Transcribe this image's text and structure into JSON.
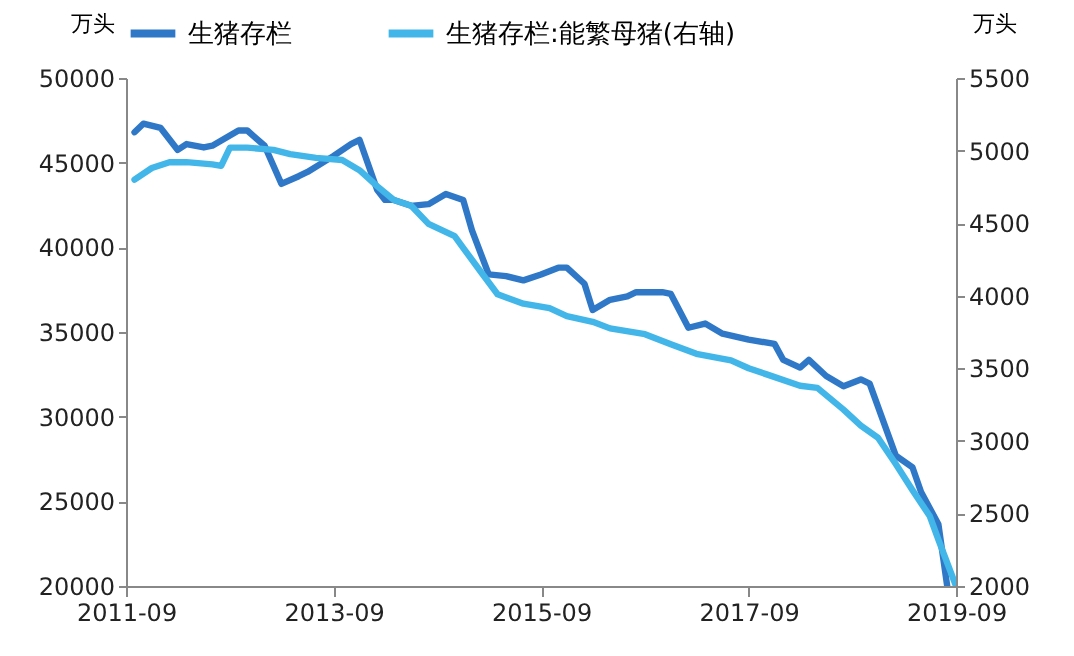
{
  "chart_data": {
    "type": "line",
    "ylabel": "万头",
    "y2label": "万头",
    "xlim": [
      "2011-09",
      "2019-09"
    ],
    "xticks": [
      "2011-09",
      "2013-09",
      "2015-09",
      "2017-09",
      "2019-09"
    ],
    "ylim": [
      20000,
      50000
    ],
    "yticks": [
      20000,
      25000,
      30000,
      35000,
      40000,
      45000,
      50000
    ],
    "y2lim": [
      2000,
      5500
    ],
    "y2ticks": [
      2000,
      2500,
      3000,
      3500,
      4000,
      4500,
      5000,
      5500
    ],
    "grid": false,
    "legend": "top",
    "line_style": "solid",
    "marker": "none",
    "series": [
      {
        "name": "生猪存栏",
        "color": "#2f78c8",
        "x": [
          "2011-10",
          "2011-11",
          "2012-01",
          "2012-03",
          "2012-04",
          "2012-06",
          "2012-07",
          "2012-10",
          "2012-11",
          "2013-01",
          "2013-03",
          "2013-05",
          "2013-06",
          "2013-09",
          "2013-11",
          "2013-12",
          "2014-02",
          "2014-03",
          "2014-04",
          "2014-06",
          "2014-08",
          "2014-10",
          "2014-12",
          "2015-01",
          "2015-03",
          "2015-05",
          "2015-07",
          "2015-09",
          "2015-11",
          "2015-12",
          "2016-02",
          "2016-03",
          "2016-05",
          "2016-07",
          "2016-08",
          "2016-11",
          "2016-12",
          "2017-02",
          "2017-04",
          "2017-06",
          "2017-09",
          "2017-12",
          "2018-01",
          "2018-03",
          "2018-04",
          "2018-06",
          "2018-08",
          "2018-10",
          "2018-11",
          "2019-02",
          "2019-04",
          "2019-05",
          "2019-07",
          "2019-08"
        ],
        "values": [
          46800,
          47300,
          47050,
          45750,
          46100,
          45900,
          46000,
          46900,
          46900,
          46000,
          43750,
          44200,
          44450,
          45400,
          46100,
          46350,
          43400,
          42800,
          42800,
          42450,
          42550,
          43150,
          42800,
          41000,
          38400,
          38300,
          38050,
          38400,
          38800,
          38800,
          37850,
          36300,
          36900,
          37100,
          37350,
          37350,
          37250,
          35250,
          35500,
          34900,
          34550,
          34300,
          33350,
          32900,
          33350,
          32400,
          31800,
          32200,
          31950,
          27700,
          27000,
          25550,
          23650,
          20000
        ]
      },
      {
        "name": "生猪存栏:能繁母猪(右轴)",
        "color": "#42b6e8",
        "axis": "y2",
        "x": [
          "2011-10",
          "2011-12",
          "2012-02",
          "2012-04",
          "2012-07",
          "2012-08",
          "2012-09",
          "2012-11",
          "2013-02",
          "2013-04",
          "2013-07",
          "2013-10",
          "2013-12",
          "2014-02",
          "2014-04",
          "2014-06",
          "2014-08",
          "2014-11",
          "2014-12",
          "2015-02",
          "2015-04",
          "2015-07",
          "2015-10",
          "2015-12",
          "2016-03",
          "2016-05",
          "2016-09",
          "2016-12",
          "2017-03",
          "2017-07",
          "2017-09",
          "2017-11",
          "2018-03",
          "2018-05",
          "2018-08",
          "2018-10",
          "2018-12",
          "2019-02",
          "2019-04",
          "2019-06",
          "2019-07",
          "2019-09"
        ],
        "values": [
          4800,
          4880,
          4920,
          4920,
          4905,
          4895,
          5020,
          5020,
          5005,
          4975,
          4950,
          4935,
          4865,
          4755,
          4660,
          4620,
          4495,
          4410,
          4330,
          4165,
          4010,
          3945,
          3915,
          3860,
          3820,
          3775,
          3735,
          3665,
          3600,
          3555,
          3500,
          3460,
          3380,
          3365,
          3215,
          3105,
          3020,
          2840,
          2660,
          2480,
          2320,
          2000
        ]
      }
    ]
  }
}
